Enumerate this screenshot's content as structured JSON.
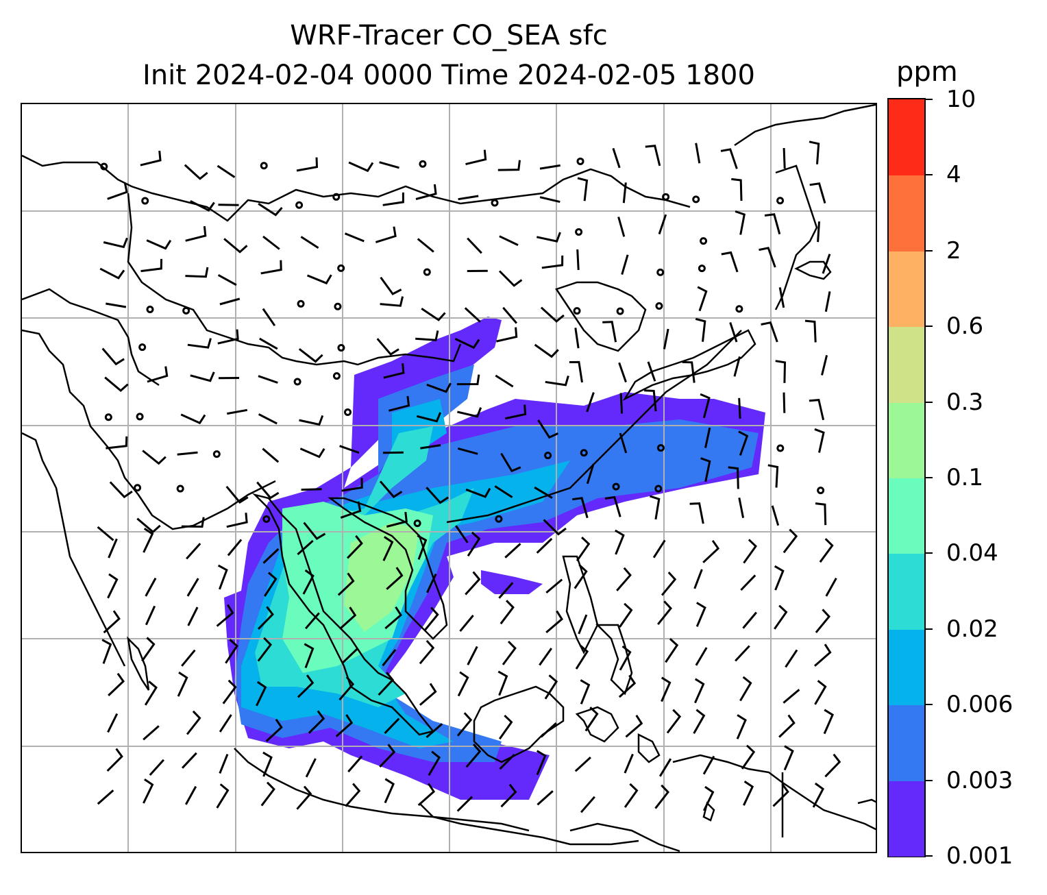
{
  "title_line1": "WRF-Tracer CO_SEA sfc",
  "title_line2": "Init 2024-02-04 0000 Time 2024-02-05 1800",
  "colorbar": {
    "unit": "ppm",
    "levels": [
      "0.001",
      "0.003",
      "0.006",
      "0.02",
      "0.04",
      "0.1",
      "0.3",
      "0.6",
      "2",
      "4",
      "10"
    ],
    "colors": [
      "#6429fb",
      "#3478f2",
      "#05b2ec",
      "#2ddcd5",
      "#69fcbc",
      "#9cf896",
      "#cfe287",
      "#feb163",
      "#fe713a",
      "#fe2b18"
    ]
  },
  "map": {
    "variable": "CO_SEA tracer concentration",
    "overlay": "wind barbs",
    "coastline_color": "#000000",
    "grid_color": "#b0b0b0"
  }
}
